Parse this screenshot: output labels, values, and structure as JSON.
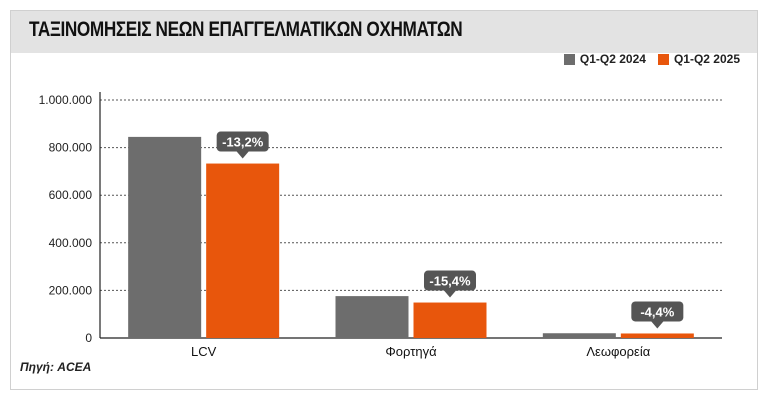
{
  "chart_data": {
    "type": "bar",
    "title": "ΤΑΞΙΝΟΜΗΣΕΙΣ ΝΕΩΝ ΕΠΑΓΓΕΛΜΑΤΙΚΩΝ ΟΧΗΜΑΤΩΝ",
    "categories": [
      "LCV",
      "Φορτηγά",
      "Λεωφορεία"
    ],
    "series": [
      {
        "name": "Q1-Q2 2024",
        "color": "#6d6d6d",
        "values": [
          845000,
          176000,
          20000
        ]
      },
      {
        "name": "Q1-Q2 2025",
        "color": "#e8560c",
        "values": [
          733000,
          149000,
          19000
        ]
      }
    ],
    "annotations": [
      "-13,2%",
      "-15,4%",
      "-4,4%"
    ],
    "ylim": [
      0,
      1000000
    ],
    "yticks": [
      0,
      200000,
      400000,
      600000,
      800000,
      1000000
    ],
    "ytick_labels": [
      "0",
      "200.000",
      "400.000",
      "600.000",
      "800.000",
      "1.000.000"
    ],
    "grid": true,
    "legend_position": "top-right",
    "callout_color": "#555555"
  },
  "footer": {
    "source": "Πηγή: ACEA"
  }
}
